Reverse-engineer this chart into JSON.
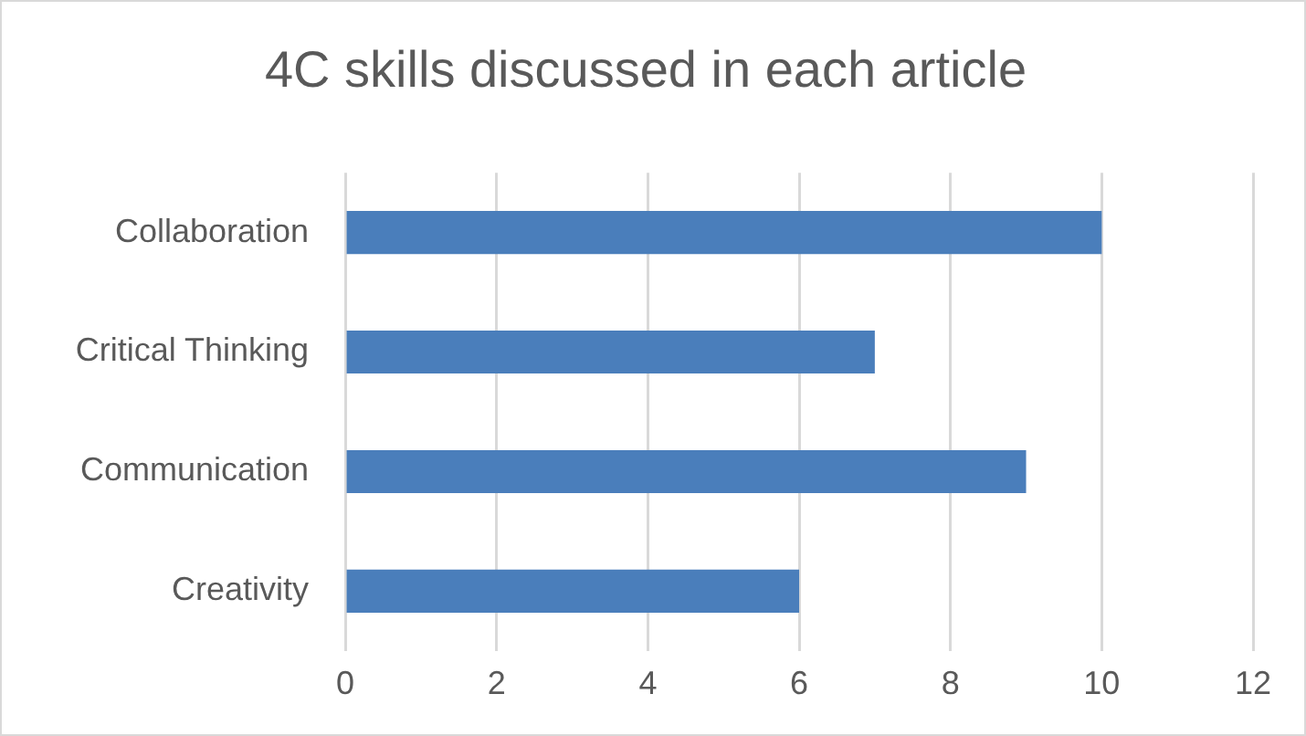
{
  "chart_data": {
    "type": "bar",
    "orientation": "horizontal",
    "title": "4C skills discussed in each article",
    "categories": [
      "Collaboration",
      "Critical Thinking",
      "Communication",
      "Creativity"
    ],
    "values": [
      10,
      7,
      9,
      6
    ],
    "color": "#4a7ebb",
    "xlim": [
      0,
      12
    ],
    "xticks": [
      0,
      2,
      4,
      6,
      8,
      10,
      12
    ],
    "grid": "x",
    "legend": false
  }
}
